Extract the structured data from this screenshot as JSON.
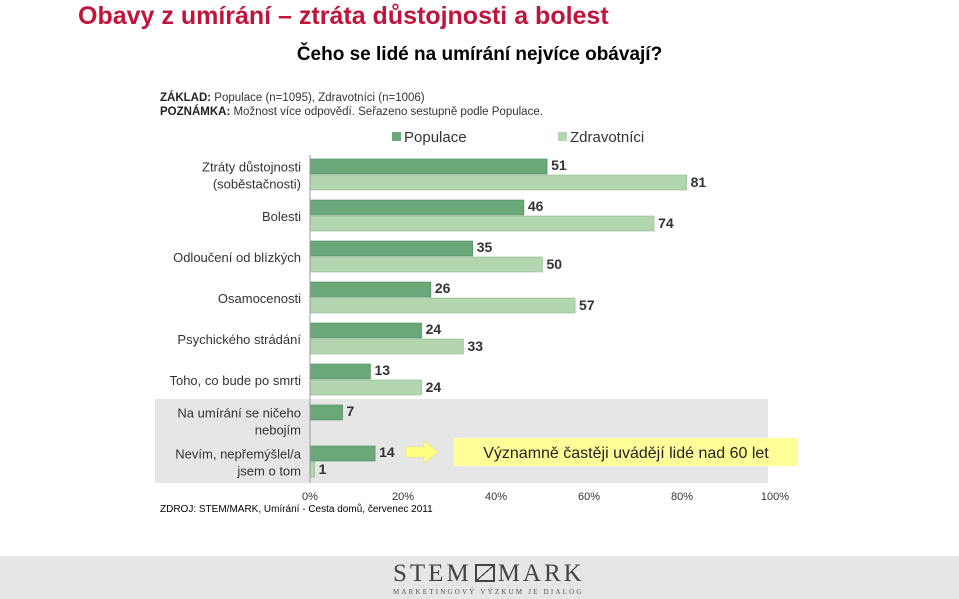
{
  "title": "Obavy z umírání – ztráta důstojnosti a bolest",
  "subtitle": "Čeho se lidé na umírání nejvíce obávají?",
  "basis_label": "ZÁKLAD:",
  "basis_text": " Populace (n=1095), Zdravotníci (n=1006)",
  "note_label": "POZNÁMKA:",
  "note_text": " Možnost více odpovědí. Seřazeno sestupně podle Populace.",
  "source": "ZDROJ: STEM/MARK, Umírání - Cesta domů, červenec 2011",
  "callout": "Významně častěji uvádějí lidé nad 60 let",
  "logo": {
    "text_left": "STEM",
    "text_right": "MARK",
    "tagline": "MARKETINGOVÝ VÝZKUM JE DIALOG"
  },
  "colors": {
    "populace": "#6aa87a",
    "zdravotnici": "#b3d5b0",
    "highlight_band": "#e6e6e6",
    "callout_bg": "#ffff99",
    "arrow": "#ffff80",
    "title": "#c0143c"
  },
  "chart_data": {
    "type": "bar",
    "orientation": "horizontal",
    "categories": [
      [
        "Ztráty důstojnosti",
        "(soběstačnosti)"
      ],
      [
        "Bolesti"
      ],
      [
        "Odloučení od blízkých"
      ],
      [
        "Osamocenosti"
      ],
      [
        "Psychického strádání"
      ],
      [
        "Toho, co bude po smrti"
      ],
      [
        "Na umírání se ničeho",
        "nebojím"
      ],
      [
        "Nevím, nepřemýšlel/a",
        "jsem o tom"
      ]
    ],
    "series": [
      {
        "name": "Populace",
        "values": [
          51,
          46,
          35,
          26,
          24,
          13,
          7,
          14
        ]
      },
      {
        "name": "Zdravotníci",
        "values": [
          81,
          74,
          50,
          57,
          33,
          24,
          null,
          1
        ]
      }
    ],
    "xlim": [
      0,
      100
    ],
    "xticks": [
      "0%",
      "20%",
      "40%",
      "60%",
      "80%",
      "100%"
    ],
    "legend_position": "top",
    "highlighted_categories": [
      6,
      7
    ]
  }
}
